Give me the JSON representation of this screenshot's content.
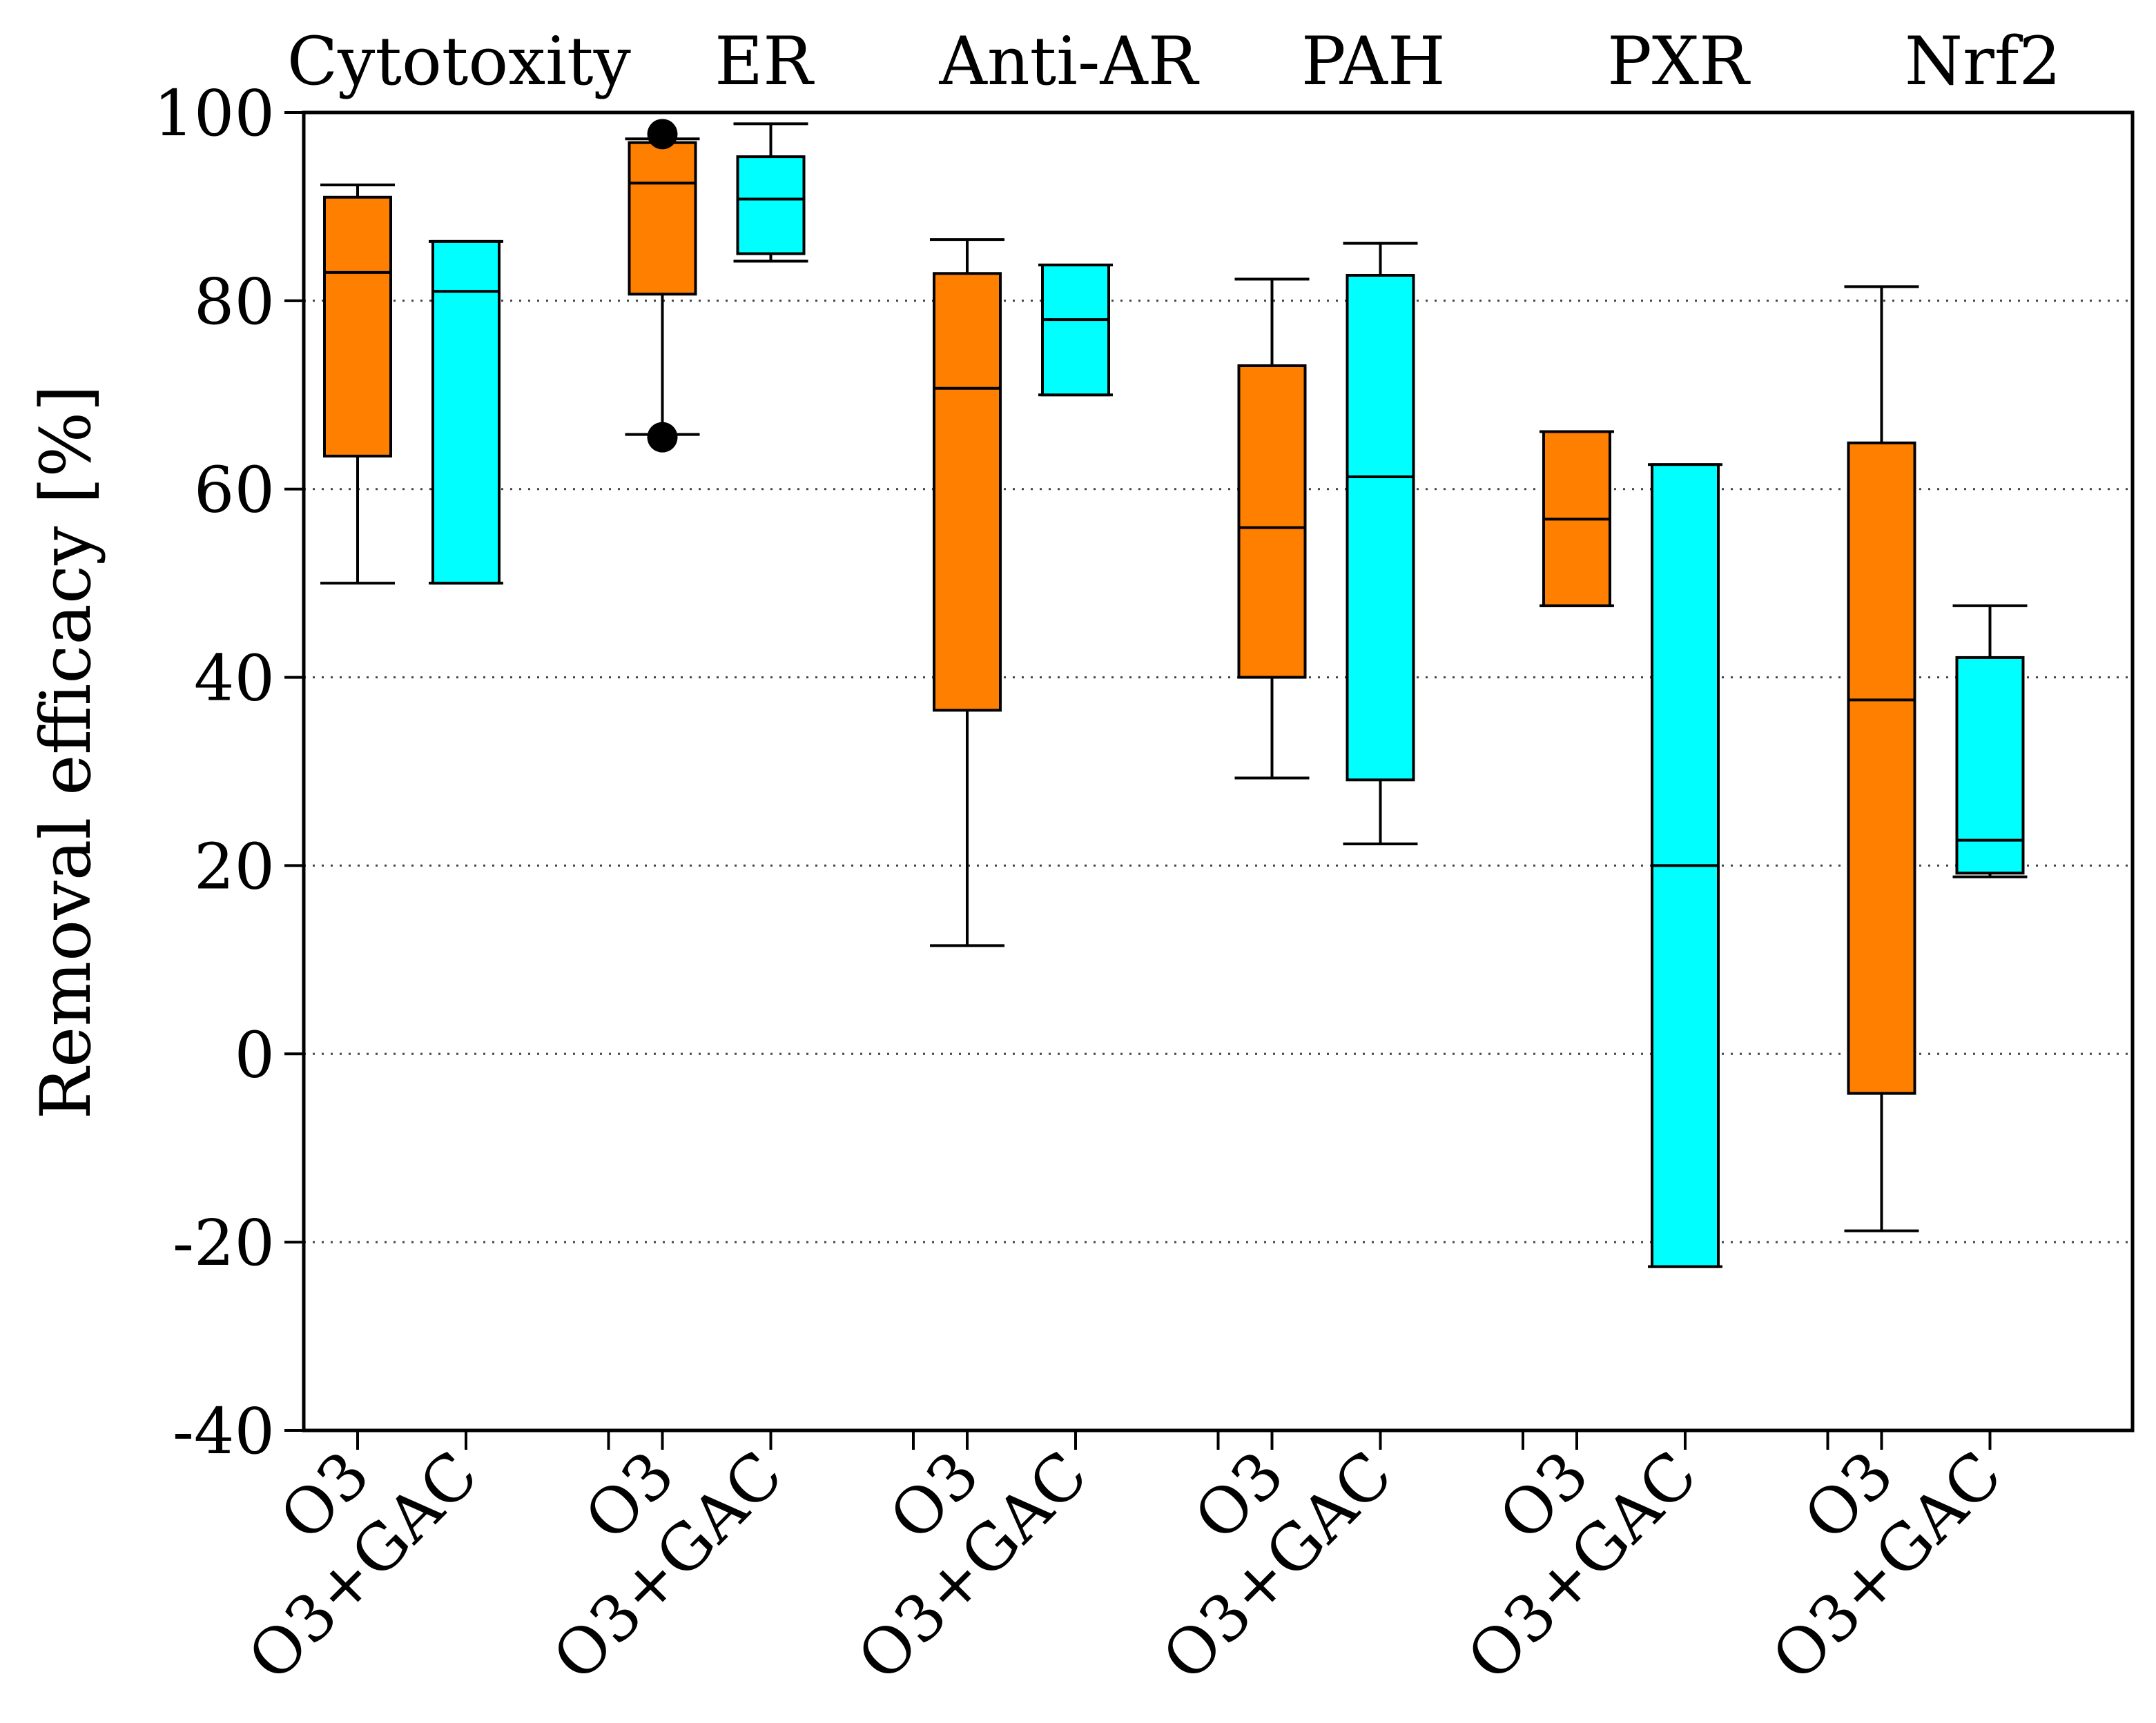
{
  "chart_data": {
    "type": "boxplot",
    "ylabel": "Removal efficacy [%]",
    "xlabel": "",
    "ylim": [
      -40,
      100
    ],
    "yticks": [
      "100",
      "80",
      "60",
      "40",
      "20",
      "0",
      "-20",
      "-40"
    ],
    "ytick_values": [
      100,
      80,
      60,
      40,
      20,
      0,
      -20,
      -40
    ],
    "grid": "horizontal dotted at 80, 60, 40, 20, 0, -20",
    "treatments": [
      "O3",
      "O3+GAC"
    ],
    "colors": {
      "O3": "#ff7f00",
      "O3+GAC": "#00ffff",
      "outlier": "#000000"
    },
    "groups": [
      {
        "name": "Cytotoxity",
        "boxes": [
          {
            "treatment": "O3",
            "label": "O3",
            "whisker_low": 50,
            "q1": 63.5,
            "median": 83,
            "q3": 91,
            "whisker_high": 92.3,
            "outliers": []
          },
          {
            "treatment": "O3+GAC",
            "label": "O3+GAC",
            "whisker_low": 50,
            "q1": 50,
            "median": 81,
            "q3": 86.3,
            "whisker_high": 86.3,
            "outliers": []
          }
        ]
      },
      {
        "name": "ER",
        "boxes": [
          {
            "treatment": "O3",
            "label": "O3",
            "whisker_low": 65.8,
            "q1": 80.7,
            "median": 92.5,
            "q3": 96.8,
            "whisker_high": 97.2,
            "outliers": [
              65.5,
              97.7
            ]
          },
          {
            "treatment": "O3+GAC",
            "label": "O3+GAC",
            "whisker_low": 84.2,
            "q1": 85,
            "median": 90.8,
            "q3": 95.3,
            "whisker_high": 98.8,
            "outliers": []
          }
        ]
      },
      {
        "name": "Anti-AR",
        "boxes": [
          {
            "treatment": "O3",
            "label": "O3",
            "whisker_low": 11.5,
            "q1": 36.5,
            "median": 70.7,
            "q3": 82.9,
            "whisker_high": 86.5,
            "outliers": []
          },
          {
            "treatment": "O3+GAC",
            "label": "O3+GAC",
            "whisker_low": 70,
            "q1": 70,
            "median": 78,
            "q3": 83.8,
            "whisker_high": 83.8,
            "outliers": []
          }
        ]
      },
      {
        "name": "PAH",
        "boxes": [
          {
            "treatment": "O3",
            "label": "O3",
            "whisker_low": 29.3,
            "q1": 40,
            "median": 55.9,
            "q3": 73.1,
            "whisker_high": 82.3,
            "outliers": []
          },
          {
            "treatment": "O3+GAC",
            "label": "O3+GAC",
            "whisker_low": 22.3,
            "q1": 29.1,
            "median": 61.3,
            "q3": 82.7,
            "whisker_high": 86.1,
            "outliers": []
          }
        ]
      },
      {
        "name": "PXR",
        "boxes": [
          {
            "treatment": "O3",
            "label": "O3",
            "whisker_low": 47.6,
            "q1": 47.6,
            "median": 56.8,
            "q3": 66.1,
            "whisker_high": 66.1,
            "outliers": []
          },
          {
            "treatment": "O3+GAC",
            "label": "O3+GAC",
            "whisker_low": -22.6,
            "q1": -22.6,
            "median": 20,
            "q3": 62.6,
            "whisker_high": 62.6,
            "outliers": []
          }
        ]
      },
      {
        "name": "Nrf2",
        "boxes": [
          {
            "treatment": "O3",
            "label": "O3",
            "whisker_low": -18.8,
            "q1": -4.2,
            "median": 37.6,
            "q3": 64.9,
            "whisker_high": 81.5,
            "outliers": []
          },
          {
            "treatment": "O3+GAC",
            "label": "O3+GAC",
            "whisker_low": 18.8,
            "q1": 19.2,
            "median": 22.7,
            "q3": 42.1,
            "whisker_high": 47.6,
            "outliers": []
          }
        ]
      }
    ]
  }
}
